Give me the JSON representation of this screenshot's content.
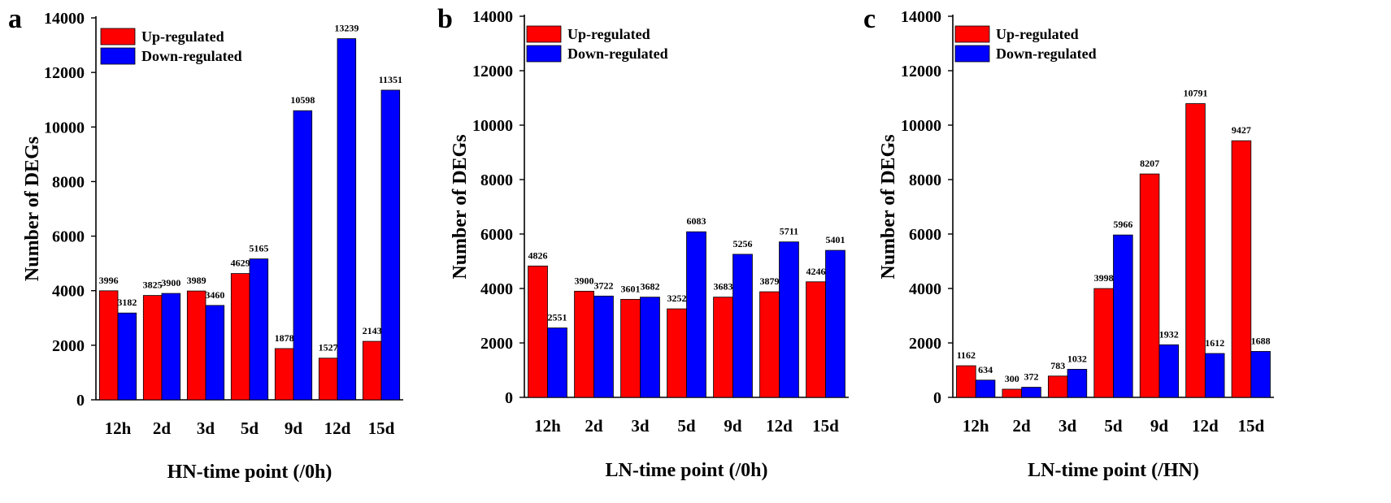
{
  "chart_data": [
    {
      "type": "bar",
      "panel": "a",
      "categories": [
        "12h",
        "2d",
        "3d",
        "5d",
        "9d",
        "12d",
        "15d"
      ],
      "series": [
        {
          "name": "Up-regulated",
          "color": "#ff0000",
          "values": [
            3996,
            3825,
            3989,
            4629,
            1878,
            1527,
            2143
          ]
        },
        {
          "name": "Down-regulated",
          "color": "#0000ff",
          "values": [
            3182,
            3900,
            3460,
            5165,
            10598,
            13239,
            11351
          ]
        }
      ],
      "xlabel": "HN-time point (/0h)",
      "ylabel": "Number of DEGs",
      "ylim": [
        0,
        14000
      ],
      "yticks": [
        "0",
        "2000",
        "4000",
        "6000",
        "8000",
        "10000",
        "12000",
        "14000"
      ],
      "legend": "top-left",
      "grid": false
    },
    {
      "type": "bar",
      "panel": "b",
      "categories": [
        "12h",
        "2d",
        "3d",
        "5d",
        "9d",
        "12d",
        "15d"
      ],
      "series": [
        {
          "name": "Up-regulated",
          "color": "#ff0000",
          "values": [
            4826,
            3900,
            3601,
            3252,
            3683,
            3879,
            4246
          ]
        },
        {
          "name": "Down-regulated",
          "color": "#0000ff",
          "values": [
            2551,
            3722,
            3682,
            6083,
            5256,
            5711,
            5401
          ]
        }
      ],
      "xlabel": "LN-time point (/0h)",
      "ylabel": "Number of DEGs",
      "ylim": [
        0,
        14000
      ],
      "yticks": [
        "0",
        "2000",
        "4000",
        "6000",
        "8000",
        "10000",
        "12000",
        "14000"
      ],
      "legend": "top-left",
      "grid": false
    },
    {
      "type": "bar",
      "panel": "c",
      "categories": [
        "12h",
        "2d",
        "3d",
        "5d",
        "9d",
        "12d",
        "15d"
      ],
      "series": [
        {
          "name": "Up-regulated",
          "color": "#ff0000",
          "values": [
            1162,
            300,
            783,
            3998,
            8207,
            10791,
            9427
          ]
        },
        {
          "name": "Down-regulated",
          "color": "#0000ff",
          "values": [
            634,
            372,
            1032,
            5966,
            1932,
            1612,
            1688
          ]
        }
      ],
      "xlabel": "LN-time point (/HN)",
      "ylabel": "Number of DEGs",
      "ylim": [
        0,
        14000
      ],
      "yticks": [
        "0",
        "2000",
        "4000",
        "6000",
        "8000",
        "10000",
        "12000",
        "14000"
      ],
      "legend": "top-left",
      "grid": false
    }
  ]
}
